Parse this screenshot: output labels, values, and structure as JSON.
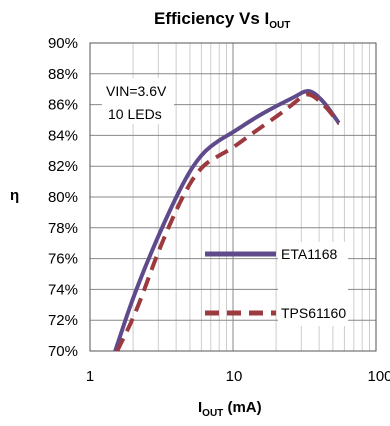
{
  "chart_data": {
    "type": "line",
    "title": "Efficiency Vs I",
    "title_subscript": "OUT",
    "xlabel": "I",
    "xlabel_subscript": "OUT",
    "xlabel_unit": " (mA)",
    "ylabel": "η",
    "x_scale": "log",
    "xlim": [
      1,
      100
    ],
    "ylim": [
      70,
      90
    ],
    "x_ticks": [
      "1",
      "10",
      "100"
    ],
    "y_ticks": [
      "90%",
      "88%",
      "86%",
      "84%",
      "82%",
      "80%",
      "78%",
      "76%",
      "74%",
      "72%",
      "70%"
    ],
    "grid": true,
    "annotations": [
      "VIN=3.6V",
      "10 LEDs"
    ],
    "legend_position": "lower-right",
    "series": [
      {
        "name": "ETA1168",
        "style": "solid",
        "color": "#5f4b8b",
        "points": [
          [
            1.5,
            70
          ],
          [
            2,
            73.5
          ],
          [
            3,
            77.5
          ],
          [
            4.5,
            81
          ],
          [
            6,
            82.8
          ],
          [
            8,
            83.7
          ],
          [
            10,
            84.2
          ],
          [
            14,
            85.1
          ],
          [
            20,
            85.9
          ],
          [
            27,
            86.5
          ],
          [
            32,
            86.9
          ],
          [
            36,
            86.85
          ],
          [
            42,
            86.3
          ],
          [
            48,
            85.6
          ],
          [
            55,
            84.8
          ]
        ]
      },
      {
        "name": "TPS61160",
        "style": "dashed",
        "color": "#9b3a3f",
        "points": [
          [
            1.55,
            70
          ],
          [
            2.1,
            72.5
          ],
          [
            3,
            76.5
          ],
          [
            4.5,
            80.2
          ],
          [
            6,
            82
          ],
          [
            8,
            82.7
          ],
          [
            10,
            83.2
          ],
          [
            14,
            84.2
          ],
          [
            20,
            85.2
          ],
          [
            26,
            86
          ],
          [
            32,
            86.7
          ],
          [
            36,
            86.6
          ],
          [
            42,
            86.1
          ],
          [
            48,
            85.5
          ],
          [
            55,
            84.8
          ]
        ]
      }
    ]
  }
}
